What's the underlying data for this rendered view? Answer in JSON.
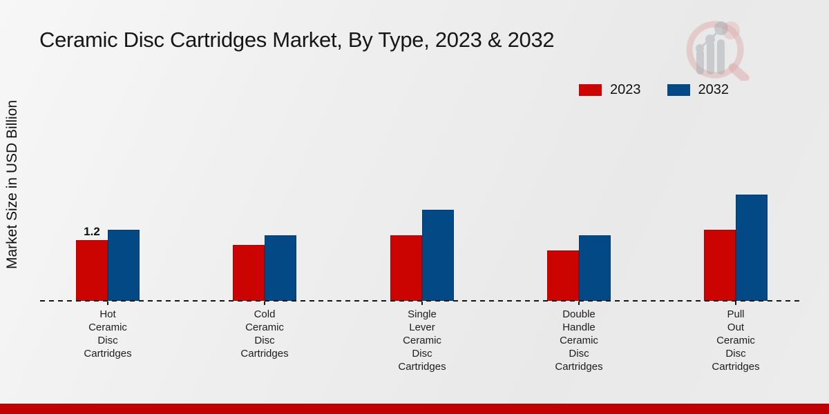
{
  "title": "Ceramic Disc Cartridges Market, By Type, 2023 & 2032",
  "y_axis_label": "Market Size in USD Billion",
  "legend": {
    "items": [
      {
        "label": "2023",
        "color": "#cb0402"
      },
      {
        "label": "2032",
        "color": "#034986"
      }
    ]
  },
  "colors": {
    "series_2023": "#cb0402",
    "series_2032": "#034986",
    "footer_bar": "#c20000",
    "baseline": "#151515"
  },
  "logo": {
    "name": "market-research-watermark-logo"
  },
  "chart_data": {
    "type": "bar",
    "title": "Ceramic Disc Cartridges Market, By Type, 2023 & 2032",
    "ylabel": "Market Size in USD Billion",
    "categories": [
      "Hot Ceramic Disc Cartridges",
      "Cold Ceramic Disc Cartridges",
      "Single Lever Ceramic Disc Cartridges",
      "Double Handle Ceramic Disc Cartridges",
      "Pull Out Ceramic Disc Cartridges"
    ],
    "category_label_lines": [
      [
        "Hot",
        "Ceramic",
        "Disc",
        "Cartridges"
      ],
      [
        "Cold",
        "Ceramic",
        "Disc",
        "Cartridges"
      ],
      [
        "Single",
        "Lever",
        "Ceramic",
        "Disc",
        "Cartridges"
      ],
      [
        "Double",
        "Handle",
        "Ceramic",
        "Disc",
        "Cartridges"
      ],
      [
        "Pull",
        "Out",
        "Ceramic",
        "Disc",
        "Cartridges"
      ]
    ],
    "series": [
      {
        "name": "2023",
        "color": "#cb0402",
        "values": [
          1.2,
          1.1,
          1.3,
          1.0,
          1.4
        ]
      },
      {
        "name": "2032",
        "color": "#034986",
        "values": [
          1.4,
          1.3,
          1.8,
          1.3,
          2.1
        ]
      }
    ],
    "data_labels": [
      {
        "series_index": 0,
        "category_index": 0,
        "text": "1.2"
      }
    ],
    "baseline_style": "dashed",
    "grid": false,
    "ylim": [
      0,
      2.5
    ],
    "legend_position": "top-right"
  }
}
